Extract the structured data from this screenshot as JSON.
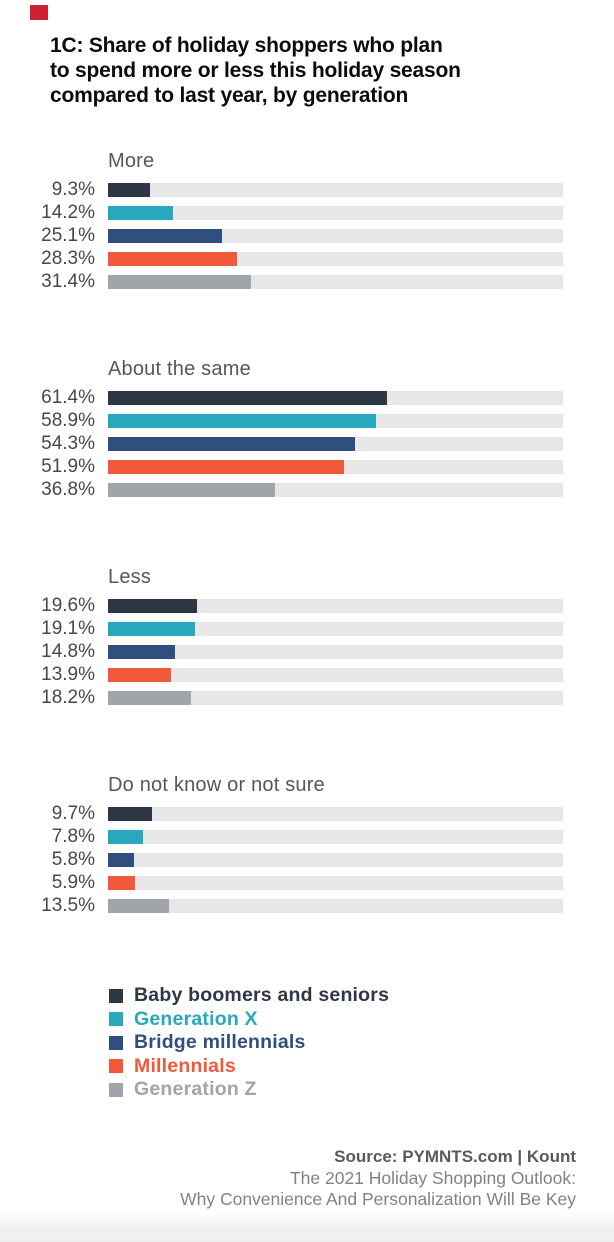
{
  "brand": {
    "mark_color": "#CE2030"
  },
  "title": {
    "lines": [
      "1C: Share of holiday shoppers who plan",
      "to spend more or less this holiday season",
      "compared to last year, by generation"
    ]
  },
  "series": [
    {
      "label": "Baby boomers and seniors",
      "color": "#2E3744"
    },
    {
      "label": "Generation X",
      "color": "#29A7BC"
    },
    {
      "label": "Bridge millennials",
      "color": "#2F4F7E"
    },
    {
      "label": "Millennials",
      "color": "#F05A3B"
    },
    {
      "label": "Generation Z",
      "color": "#A0A4AB"
    }
  ],
  "track_color": "#E7E7E7",
  "chart_data": {
    "type": "bar",
    "orientation": "horizontal",
    "unit": "percent",
    "xlim": [
      0,
      100
    ],
    "grid": false,
    "legend_position": "bottom-left",
    "title": "1C: Share of holiday shoppers who plan to spend more or less this holiday season compared to last year, by generation",
    "categories": [
      "Baby boomers and seniors",
      "Generation X",
      "Bridge millennials",
      "Millennials",
      "Generation Z"
    ],
    "groups": [
      {
        "category": "More",
        "values": [
          9.3,
          14.2,
          25.1,
          28.3,
          31.4
        ]
      },
      {
        "category": "About the same",
        "values": [
          61.4,
          58.9,
          54.3,
          51.9,
          36.8
        ]
      },
      {
        "category": "Less",
        "values": [
          19.6,
          19.1,
          14.8,
          13.9,
          18.2
        ]
      },
      {
        "category": "Do not know or not sure",
        "values": [
          9.7,
          7.8,
          5.8,
          5.9,
          13.5
        ]
      }
    ]
  },
  "footer": {
    "source": "Source: PYMNTS.com | Kount",
    "line2": "The 2021 Holiday Shopping Outlook:",
    "line3": "Why Convenience And Personalization Will Be Key"
  }
}
